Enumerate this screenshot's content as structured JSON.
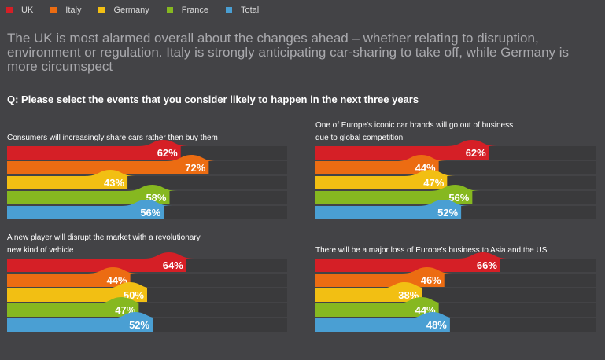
{
  "legend": [
    {
      "label": "UK",
      "color": "#d51f26"
    },
    {
      "label": "Italy",
      "color": "#ec6c12"
    },
    {
      "label": "Germany",
      "color": "#f2bf13"
    },
    {
      "label": "France",
      "color": "#86b820"
    },
    {
      "label": "Total",
      "color": "#4a9fd3"
    }
  ],
  "headline": "The UK is most alarmed overall about the changes ahead – whether relating to disruption, environment or regulation. Italy is strongly anticipating car-sharing to take off, while Germany is more circumspect",
  "question": "Q: Please select the events that you consider likely to happen in the next three years",
  "chart_data": [
    {
      "type": "bar",
      "title_lines": [
        "Consumers will increasingly share cars rather then buy them"
      ],
      "categories": [
        "UK",
        "Italy",
        "Germany",
        "France",
        "Total"
      ],
      "values": [
        62,
        72,
        43,
        58,
        56
      ],
      "value_labels": [
        "62%",
        "72%",
        "43%",
        "58%",
        "56%"
      ]
    },
    {
      "type": "bar",
      "title_lines": [
        "One of Europe’s iconic car brands will go out of business",
        "due to global competition"
      ],
      "categories": [
        "UK",
        "Italy",
        "Germany",
        "France",
        "Total"
      ],
      "values": [
        62,
        44,
        47,
        56,
        52
      ],
      "value_labels": [
        "62%",
        "44%",
        "47%",
        "56%",
        "52%"
      ]
    },
    {
      "type": "bar",
      "title_lines": [
        "A new player will disrupt the market with a revolutionary",
        "new kind of vehicle"
      ],
      "categories": [
        "UK",
        "Italy",
        "Germany",
        "France",
        "Total"
      ],
      "values": [
        64,
        44,
        50,
        47,
        52
      ],
      "value_labels": [
        "64%",
        "44%",
        "50%",
        "47%",
        "52%"
      ]
    },
    {
      "type": "bar",
      "title_lines": [
        "There will be a major loss of Europe’s business to Asia and the US"
      ],
      "categories": [
        "UK",
        "Italy",
        "Germany",
        "France",
        "Total"
      ],
      "values": [
        66,
        46,
        38,
        44,
        48
      ],
      "value_labels": [
        "66%",
        "46%",
        "38%",
        "44%",
        "48%"
      ]
    }
  ],
  "colors": {
    "track": "#3a3a3c",
    "series": [
      "#d51f26",
      "#ec6c12",
      "#f2bf13",
      "#86b820",
      "#4a9fd3"
    ]
  }
}
